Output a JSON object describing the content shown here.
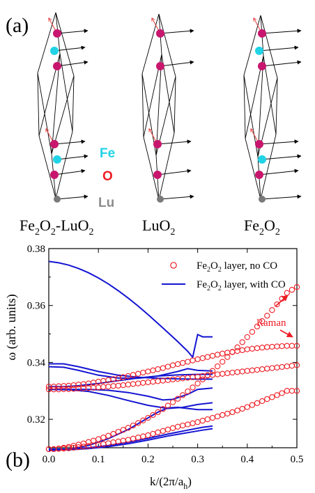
{
  "panel_a": {
    "label": "(a)",
    "legend": [
      {
        "symbol": "Fe",
        "color": "#22d3e6"
      },
      {
        "symbol": "O",
        "color": "#ee1c24"
      },
      {
        "symbol": "Lu",
        "color": "#8c8c8c"
      }
    ],
    "structures": [
      {
        "main": "Fe",
        "sub1": "2",
        "mid1": "O",
        "sub2": "2",
        "dash": "-LuO",
        "sub3": "2"
      },
      {
        "main": "LuO",
        "sub1": "2"
      },
      {
        "main": "Fe",
        "sub1": "2",
        "mid1": "O",
        "sub2": "2"
      }
    ],
    "atom_colors": {
      "fe": "#22d3e6",
      "o": "#c8166e",
      "lu": "#7a7a7a",
      "mode": "#e83a3a",
      "arrow": "#000000"
    }
  },
  "panel_b": {
    "label": "(b)",
    "annotation": "Raman",
    "annotation_color": "#ee1c24"
  },
  "chart_data": {
    "type": "line",
    "xlabel": {
      "pre": "k/(2π/a",
      "sub": "h",
      "post": ")"
    },
    "ylabel": "ω (arb. units)",
    "xlim": [
      0.0,
      0.5
    ],
    "ylim": [
      0.31,
      0.38
    ],
    "xticks": [
      "0.0",
      "0.1",
      "0.2",
      "0.3",
      "0.4",
      "0.5"
    ],
    "yticks": [
      "0.32",
      "0.34",
      "0.36",
      "0.38"
    ],
    "xtick_values": [
      0.0,
      0.1,
      0.2,
      0.3,
      0.4,
      0.5
    ],
    "ytick_values": [
      0.32,
      0.34,
      0.36,
      0.38
    ],
    "legend": [
      {
        "pre": "Fe",
        "sub1": "2",
        "mid": "O",
        "sub2": "2",
        "post": " layer, no CO",
        "style": "circle",
        "color": "#ee1c24"
      },
      {
        "pre": "Fe",
        "sub1": "2",
        "mid": "O",
        "sub2": "2",
        "post": " layer, with CO",
        "style": "line",
        "color": "#1414d2"
      }
    ],
    "series": [
      {
        "style": "circle",
        "color": "#ee1c24",
        "x": [
          0.0,
          0.01,
          0.02,
          0.03,
          0.04,
          0.05,
          0.06,
          0.07,
          0.08,
          0.09,
          0.1,
          0.11,
          0.12,
          0.13,
          0.14,
          0.15,
          0.16,
          0.17,
          0.18,
          0.19,
          0.2,
          0.21,
          0.22,
          0.23,
          0.24,
          0.25,
          0.26,
          0.27,
          0.28,
          0.29,
          0.3,
          0.31,
          0.32,
          0.33,
          0.34,
          0.35,
          0.36,
          0.37,
          0.38,
          0.39,
          0.4,
          0.41,
          0.42,
          0.43,
          0.44,
          0.45,
          0.46,
          0.47,
          0.48,
          0.49,
          0.5
        ],
        "y": [
          0.3095,
          0.3095,
          0.3097,
          0.31,
          0.3103,
          0.3107,
          0.3111,
          0.3115,
          0.312,
          0.3125,
          0.313,
          0.3136,
          0.3142,
          0.3149,
          0.3156,
          0.3163,
          0.317,
          0.3178,
          0.3187,
          0.3196,
          0.3205,
          0.3215,
          0.3225,
          0.3236,
          0.3248,
          0.326,
          0.3272,
          0.3285,
          0.3298,
          0.3312,
          0.3326,
          0.334,
          0.3355,
          0.337,
          0.3386,
          0.3402,
          0.3419,
          0.3436,
          0.3453,
          0.3471,
          0.3489,
          0.3507,
          0.3526,
          0.3545,
          0.3564,
          0.3584,
          0.3604,
          0.3624,
          0.3644,
          0.3655,
          0.3665
        ]
      },
      {
        "style": "circle",
        "color": "#ee1c24",
        "x": [
          0.0,
          0.01,
          0.02,
          0.03,
          0.04,
          0.05,
          0.06,
          0.07,
          0.08,
          0.09,
          0.1,
          0.11,
          0.12,
          0.13,
          0.14,
          0.15,
          0.16,
          0.17,
          0.18,
          0.19,
          0.2,
          0.21,
          0.22,
          0.23,
          0.24,
          0.25,
          0.26,
          0.27,
          0.28,
          0.29,
          0.3,
          0.31,
          0.32,
          0.33,
          0.34,
          0.35,
          0.36,
          0.37,
          0.38,
          0.39,
          0.4,
          0.41,
          0.42,
          0.43,
          0.44,
          0.45,
          0.46,
          0.47,
          0.48,
          0.49,
          0.5
        ],
        "y": [
          0.3315,
          0.3315,
          0.3316,
          0.3317,
          0.3318,
          0.332,
          0.3322,
          0.3324,
          0.3326,
          0.3329,
          0.3332,
          0.3335,
          0.3338,
          0.3341,
          0.3344,
          0.3348,
          0.3352,
          0.3356,
          0.336,
          0.3364,
          0.3368,
          0.3372,
          0.3376,
          0.338,
          0.3385,
          0.339,
          0.3394,
          0.3398,
          0.3402,
          0.3407,
          0.3411,
          0.3415,
          0.3419,
          0.3423,
          0.3427,
          0.3431,
          0.3434,
          0.3437,
          0.344,
          0.3443,
          0.3446,
          0.3448,
          0.345,
          0.3452,
          0.3454,
          0.3455,
          0.3456,
          0.3457,
          0.3458,
          0.3458,
          0.3458
        ]
      },
      {
        "style": "circle",
        "color": "#ee1c24",
        "x": [
          0.0,
          0.01,
          0.02,
          0.03,
          0.04,
          0.05,
          0.06,
          0.07,
          0.08,
          0.09,
          0.1,
          0.11,
          0.12,
          0.13,
          0.14,
          0.15,
          0.16,
          0.17,
          0.18,
          0.19,
          0.2,
          0.21,
          0.22,
          0.23,
          0.24,
          0.25,
          0.26,
          0.27,
          0.28,
          0.29,
          0.3,
          0.31,
          0.32,
          0.33,
          0.34,
          0.35,
          0.36,
          0.37,
          0.38,
          0.39,
          0.4,
          0.41,
          0.42,
          0.43,
          0.44,
          0.45,
          0.46,
          0.47,
          0.48,
          0.49,
          0.5
        ],
        "y": [
          0.3305,
          0.3305,
          0.3305,
          0.3306,
          0.3306,
          0.3307,
          0.3308,
          0.3309,
          0.331,
          0.3311,
          0.3312,
          0.3314,
          0.3315,
          0.3317,
          0.3318,
          0.332,
          0.3322,
          0.3324,
          0.3326,
          0.3328,
          0.333,
          0.3332,
          0.3334,
          0.3336,
          0.3338,
          0.334,
          0.3342,
          0.3344,
          0.3346,
          0.3348,
          0.335,
          0.3352,
          0.3354,
          0.3356,
          0.3358,
          0.336,
          0.3362,
          0.3364,
          0.3366,
          0.3368,
          0.337,
          0.3372,
          0.3374,
          0.3376,
          0.3378,
          0.338,
          0.3382,
          0.3384,
          0.3386,
          0.3388,
          0.339
        ]
      },
      {
        "style": "circle",
        "color": "#ee1c24",
        "x": [
          0.0,
          0.01,
          0.02,
          0.03,
          0.04,
          0.05,
          0.06,
          0.07,
          0.08,
          0.09,
          0.1,
          0.11,
          0.12,
          0.13,
          0.14,
          0.15,
          0.16,
          0.17,
          0.18,
          0.19,
          0.2,
          0.21,
          0.22,
          0.23,
          0.24,
          0.25,
          0.26,
          0.27,
          0.28,
          0.29,
          0.3,
          0.31,
          0.32,
          0.33,
          0.34,
          0.35,
          0.36,
          0.37,
          0.38,
          0.39,
          0.4,
          0.41,
          0.42,
          0.43,
          0.44,
          0.45,
          0.46,
          0.47,
          0.48,
          0.49,
          0.5
        ],
        "y": [
          0.3095,
          0.3095,
          0.3096,
          0.3097,
          0.3098,
          0.31,
          0.3102,
          0.3104,
          0.3106,
          0.3108,
          0.311,
          0.3113,
          0.3116,
          0.3119,
          0.3122,
          0.3125,
          0.3128,
          0.3132,
          0.3136,
          0.314,
          0.3144,
          0.3149,
          0.3154,
          0.3159,
          0.3164,
          0.3169,
          0.3174,
          0.3178,
          0.3182,
          0.3186,
          0.319,
          0.3195,
          0.32,
          0.3205,
          0.321,
          0.3215,
          0.322,
          0.3225,
          0.3231,
          0.3237,
          0.3243,
          0.325,
          0.3257,
          0.3264,
          0.3271,
          0.3278,
          0.3285,
          0.3292,
          0.33,
          0.33,
          0.33
        ]
      },
      {
        "style": "line",
        "color": "#1414d2",
        "x": [
          0.0,
          0.02,
          0.04,
          0.06,
          0.08,
          0.1,
          0.12,
          0.14,
          0.16,
          0.18,
          0.2,
          0.22,
          0.24,
          0.26,
          0.28,
          0.29,
          0.3,
          0.31,
          0.33
        ],
        "y": [
          0.3755,
          0.375,
          0.3742,
          0.373,
          0.3715,
          0.3697,
          0.3676,
          0.3652,
          0.3626,
          0.3598,
          0.3568,
          0.3537,
          0.3505,
          0.3473,
          0.3439,
          0.3418,
          0.3498,
          0.349,
          0.349
        ]
      },
      {
        "style": "line",
        "color": "#1414d2",
        "x": [
          0.0,
          0.03,
          0.06,
          0.1,
          0.14,
          0.18,
          0.22,
          0.26,
          0.3,
          0.33
        ],
        "y": [
          0.3395,
          0.3395,
          0.3385,
          0.3368,
          0.3355,
          0.3348,
          0.3344,
          0.3342,
          0.3341,
          0.3341
        ]
      },
      {
        "style": "line",
        "color": "#1414d2",
        "x": [
          0.0,
          0.03,
          0.06,
          0.1,
          0.14,
          0.18,
          0.22,
          0.26,
          0.28,
          0.3,
          0.33
        ],
        "y": [
          0.3385,
          0.3383,
          0.3372,
          0.3355,
          0.3345,
          0.3344,
          0.3352,
          0.3368,
          0.3378,
          0.3372,
          0.337
        ]
      },
      {
        "style": "line",
        "color": "#1414d2",
        "x": [
          0.0,
          0.03,
          0.06,
          0.1,
          0.14,
          0.18,
          0.22,
          0.26,
          0.3,
          0.33
        ],
        "y": [
          0.3315,
          0.3315,
          0.3318,
          0.3326,
          0.3336,
          0.3345,
          0.3352,
          0.3356,
          0.3358,
          0.3358
        ]
      },
      {
        "style": "line",
        "color": "#1414d2",
        "x": [
          0.0,
          0.04,
          0.08,
          0.12,
          0.16,
          0.2,
          0.23,
          0.25,
          0.28,
          0.3,
          0.33
        ],
        "y": [
          0.3305,
          0.3305,
          0.3305,
          0.3302,
          0.3294,
          0.3281,
          0.3268,
          0.327,
          0.3288,
          0.3305,
          0.331
        ]
      },
      {
        "style": "line",
        "color": "#1414d2",
        "x": [
          0.0,
          0.04,
          0.08,
          0.12,
          0.16,
          0.2,
          0.24,
          0.27,
          0.3,
          0.33
        ],
        "y": [
          0.3305,
          0.3304,
          0.3298,
          0.3284,
          0.3266,
          0.3249,
          0.3238,
          0.3242,
          0.3252,
          0.3258
        ]
      },
      {
        "style": "line",
        "color": "#1414d2",
        "x": [
          0.0,
          0.04,
          0.08,
          0.12,
          0.16,
          0.2,
          0.22,
          0.24,
          0.26,
          0.28,
          0.3,
          0.33
        ],
        "y": [
          0.309,
          0.3095,
          0.3108,
          0.3132,
          0.3164,
          0.3205,
          0.3225,
          0.324,
          0.3242,
          0.3238,
          0.3234,
          0.3234
        ]
      },
      {
        "style": "line",
        "color": "#1414d2",
        "x": [
          0.0,
          0.04,
          0.08,
          0.12,
          0.16,
          0.2,
          0.24,
          0.28,
          0.31,
          0.33
        ],
        "y": [
          0.3095,
          0.3095,
          0.31,
          0.3108,
          0.3119,
          0.3133,
          0.3148,
          0.3162,
          0.3172,
          0.3176
        ]
      },
      {
        "style": "line",
        "color": "#1414d2",
        "x": [
          0.0,
          0.04,
          0.08,
          0.12,
          0.16,
          0.2,
          0.24,
          0.28,
          0.31,
          0.33
        ],
        "y": [
          0.3093,
          0.3093,
          0.3097,
          0.3104,
          0.3114,
          0.3127,
          0.3141,
          0.3153,
          0.3162,
          0.3167
        ]
      }
    ]
  }
}
